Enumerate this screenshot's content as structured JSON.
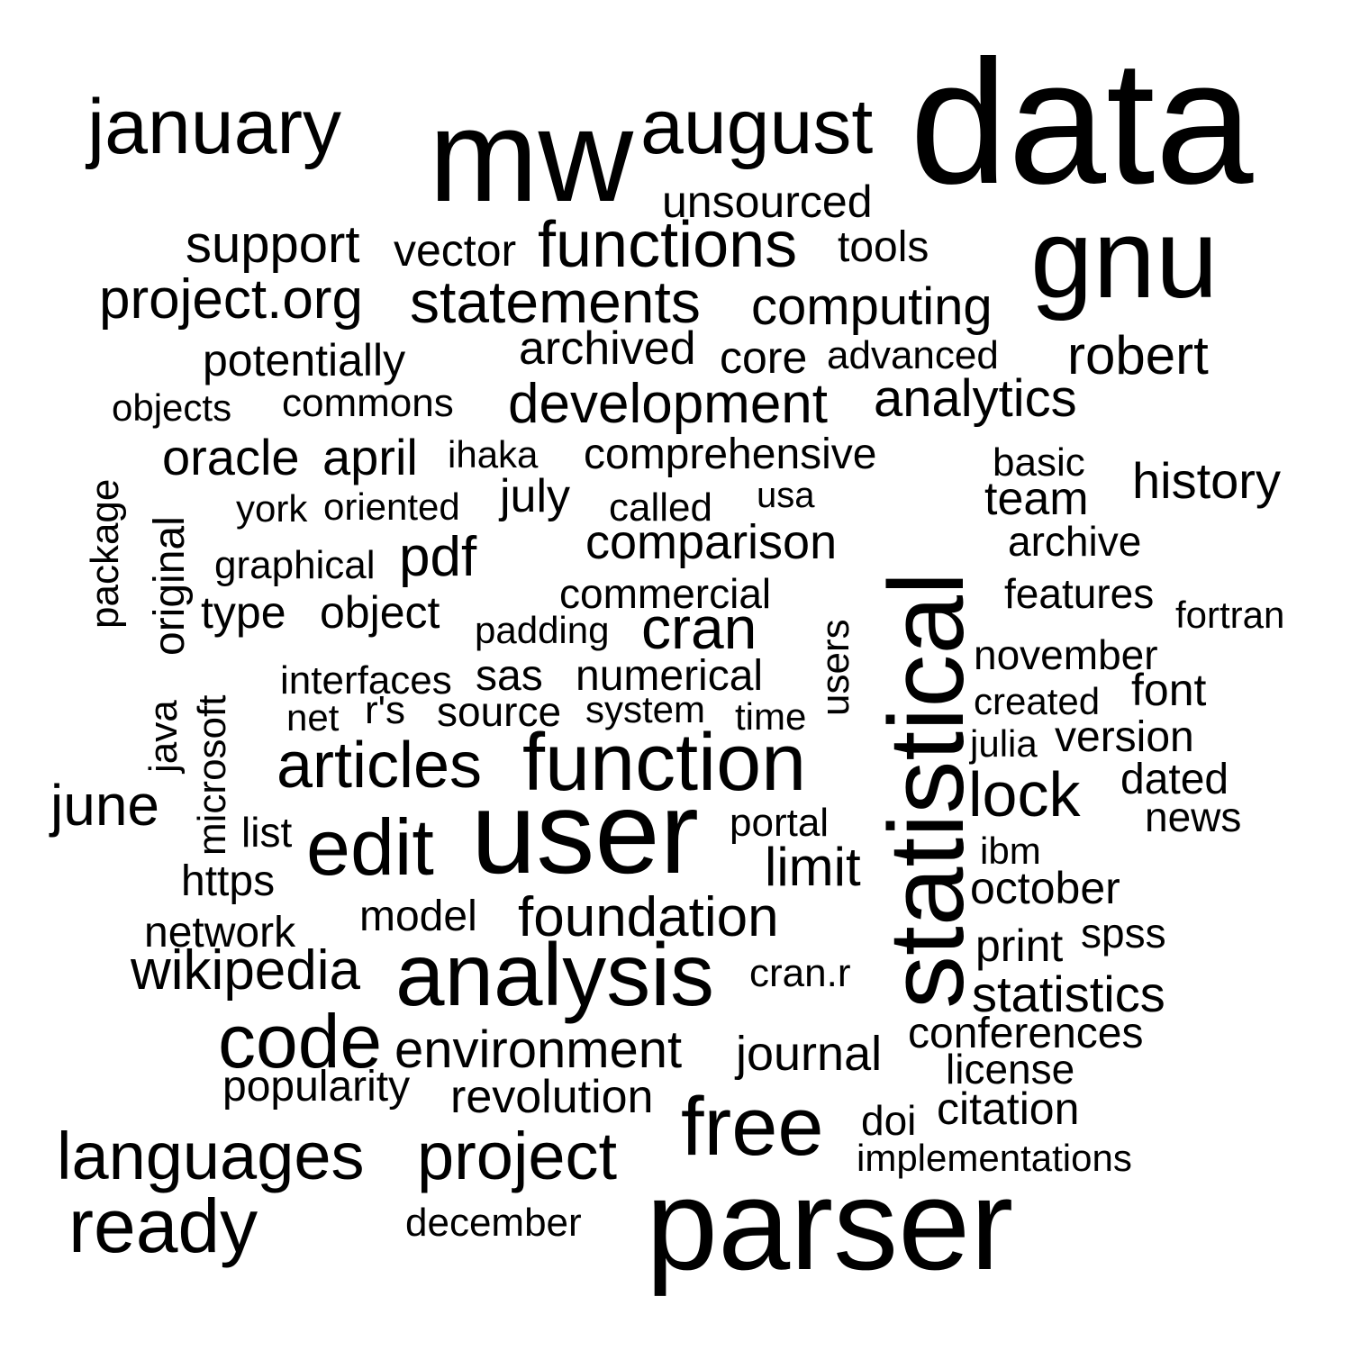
{
  "word_cloud": {
    "words": [
      "january",
      "mw",
      "august",
      "data",
      "unsourced",
      "gnu",
      "support",
      "vector",
      "functions",
      "tools",
      "project.org",
      "statements",
      "computing",
      "potentially",
      "archived",
      "core",
      "advanced",
      "robert",
      "objects",
      "commons",
      "development",
      "analytics",
      "oracle",
      "april",
      "ihaka",
      "comprehensive",
      "basic",
      "history",
      "york",
      "oriented",
      "july",
      "called",
      "usa",
      "team",
      "package",
      "original",
      "graphical",
      "pdf",
      "comparison",
      "archive",
      "statistical",
      "commercial",
      "features",
      "type",
      "object",
      "padding",
      "cran",
      "users",
      "fortran",
      "november",
      "interfaces",
      "sas",
      "numerical",
      "created",
      "font",
      "net",
      "r's",
      "source",
      "system",
      "time",
      "java",
      "microsoft",
      "julia",
      "version",
      "articles",
      "function",
      "dated",
      "june",
      "lock",
      "news",
      "list",
      "portal",
      "edit",
      "user",
      "ibm",
      "limit",
      "https",
      "october",
      "model",
      "foundation",
      "network",
      "print",
      "spss",
      "wikipedia",
      "analysis",
      "cran.r",
      "statistics",
      "code",
      "conferences",
      "environment",
      "journal",
      "license",
      "popularity",
      "revolution",
      "free",
      "doi",
      "citation",
      "languages",
      "project",
      "implementations",
      "ready",
      "december",
      "parser"
    ]
  }
}
